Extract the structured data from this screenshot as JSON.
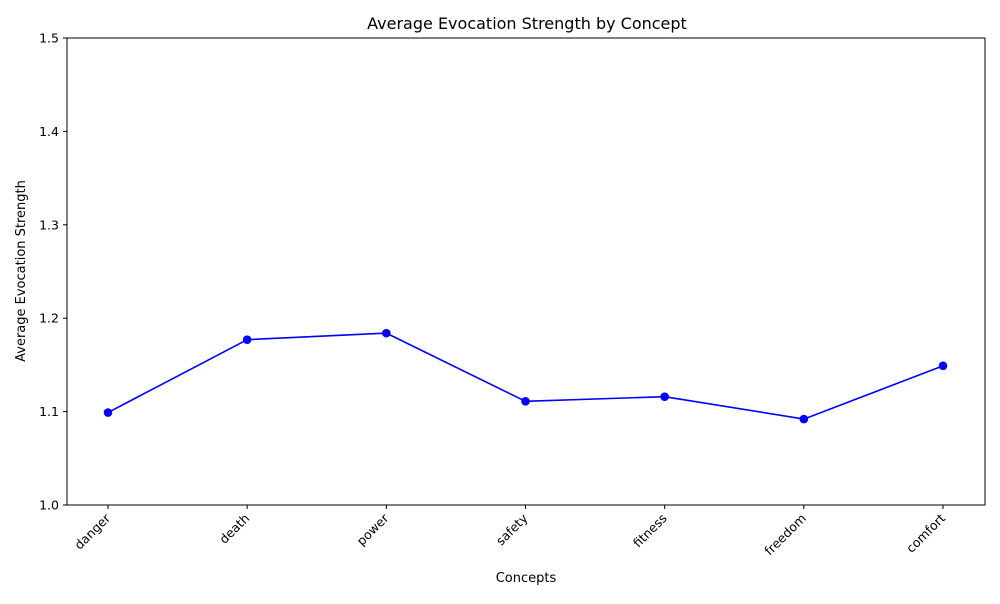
{
  "chart_data": {
    "type": "line",
    "title": "Average Evocation Strength by Concept",
    "xlabel": "Concepts",
    "ylabel": "Average Evocation Strength",
    "categories": [
      "danger",
      "death",
      "power",
      "safety",
      "fitness",
      "freedom",
      "comfort"
    ],
    "series": [
      {
        "values": [
          1.099,
          1.177,
          1.184,
          1.111,
          1.116,
          1.092,
          1.149
        ],
        "color": "#0000ff",
        "marker": "circle"
      }
    ],
    "ylim": [
      1.0,
      1.5
    ],
    "yticks": [
      "1.0",
      "1.1",
      "1.2",
      "1.3",
      "1.4",
      "1.5"
    ],
    "grid": false,
    "legend": "none"
  }
}
